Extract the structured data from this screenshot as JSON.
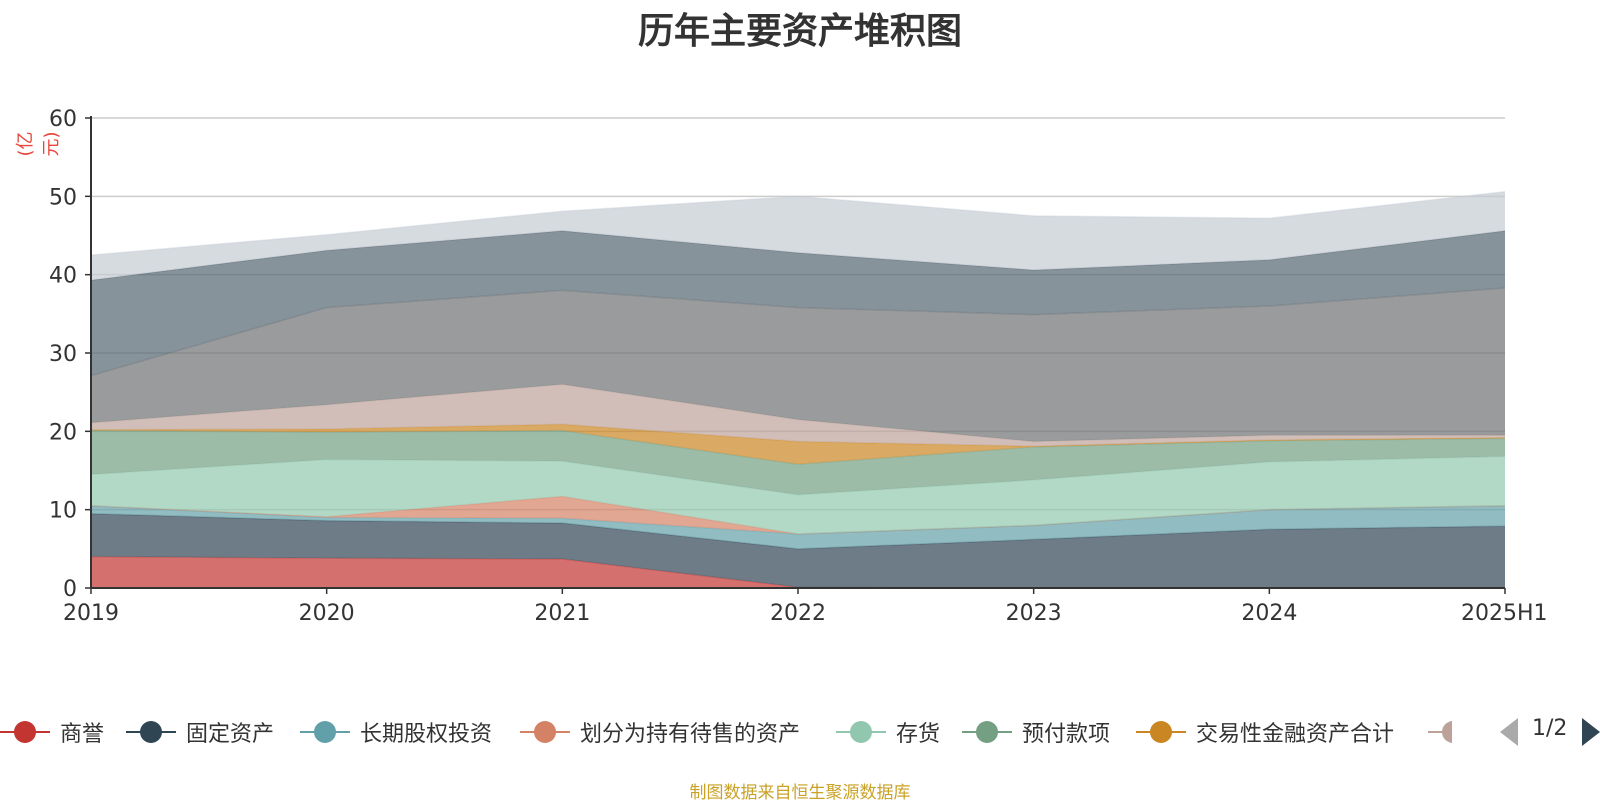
{
  "chart_data": {
    "type": "area",
    "stacked": true,
    "title": "历年主要资产堆积图",
    "unit": "(亿元)",
    "categories": [
      "2019",
      "2020",
      "2021",
      "2022",
      "2023",
      "2024",
      "2025H1"
    ],
    "ylim": [
      0,
      60
    ],
    "yticks": [
      "0",
      "10",
      "20",
      "30",
      "40",
      "50",
      "60"
    ],
    "grid": true,
    "legend_position": "bottom",
    "series": [
      {
        "name": "商誉",
        "color": "#c23531",
        "values": [
          4.0,
          3.8,
          3.7,
          0.1,
          0.0,
          0.0,
          0.0
        ]
      },
      {
        "name": "固定资产",
        "color": "#2f4554",
        "values": [
          5.5,
          4.8,
          4.6,
          4.9,
          6.2,
          7.5,
          7.9
        ]
      },
      {
        "name": "长期股权投资",
        "color": "#61a0a8",
        "values": [
          1.0,
          0.4,
          0.6,
          1.9,
          1.8,
          2.5,
          2.6
        ]
      },
      {
        "name": "划分为持有待售的资产",
        "color": "#d48265",
        "values": [
          0.0,
          0.1,
          2.8,
          0.0,
          0.0,
          0.0,
          0.0
        ]
      },
      {
        "name": "存货",
        "color": "#91c7ae",
        "values": [
          4.0,
          7.3,
          4.5,
          5.0,
          5.8,
          6.1,
          6.3
        ]
      },
      {
        "name": "预付款项",
        "color": "#749f83",
        "values": [
          5.6,
          3.5,
          3.9,
          3.9,
          4.2,
          2.7,
          2.3
        ]
      },
      {
        "name": "交易性金融资产合计",
        "color": "#ca8622",
        "values": [
          0.1,
          0.4,
          0.8,
          2.9,
          0.1,
          0.1,
          0.1
        ]
      },
      {
        "name": "",
        "color": "#bda29a",
        "values": [
          0.9,
          3.1,
          5.1,
          2.8,
          0.6,
          0.6,
          0.3
        ]
      },
      {
        "name": "",
        "color": "#6e7074",
        "values": [
          6.0,
          12.4,
          12.0,
          14.3,
          16.2,
          16.5,
          18.8
        ]
      },
      {
        "name": "",
        "color": "#546570",
        "values": [
          12.2,
          7.3,
          7.6,
          7.0,
          5.7,
          5.9,
          7.3
        ]
      },
      {
        "name": "",
        "color": "#c4ccd3",
        "values": [
          3.2,
          2.0,
          2.5,
          7.2,
          6.9,
          5.3,
          5.0
        ]
      }
    ]
  },
  "legend": {
    "visible_items": [
      "商誉",
      "固定资产",
      "长期股权投资",
      "划分为持有待售的资产",
      "存货",
      "预付款项",
      "交易性金融资产合计"
    ],
    "page_indicator": "1/2"
  },
  "source_note": "制图数据来自恒生聚源数据库"
}
